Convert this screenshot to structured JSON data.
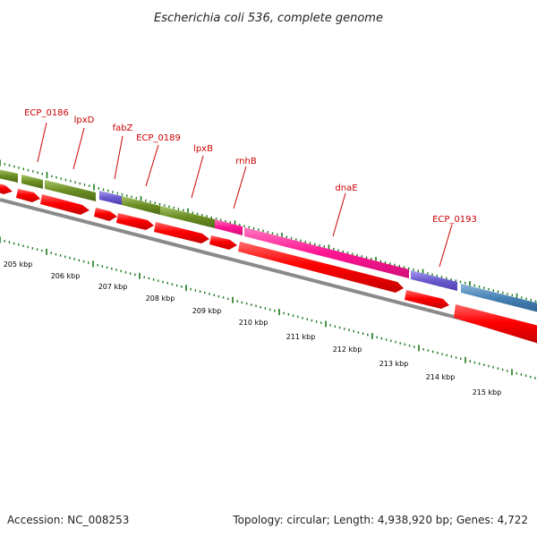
{
  "title": "Escherichia coli 536, complete genome",
  "footer": {
    "accession": "Accession: NC_008253",
    "summary": "Topology: circular; Length: 4,938,920 bp; Genes: 4,722"
  },
  "colors": {
    "tick": "#1a7a1a",
    "label": "#cc0000",
    "backbone": "#888888",
    "feature_olive": "#6b8e23",
    "feature_purple": "#6a5acd",
    "feature_magenta": "#ff1493",
    "feature_steelblue": "#4682b4",
    "gene_red": "#ff0000"
  },
  "gene_labels": [
    {
      "name": "ECP_0186"
    },
    {
      "name": "lpxD"
    },
    {
      "name": "fabZ"
    },
    {
      "name": "ECP_0189"
    },
    {
      "name": "lpxB"
    },
    {
      "name": "rnhB"
    },
    {
      "name": "dnaE"
    },
    {
      "name": "ECP_0193"
    }
  ],
  "scale_labels": [
    "205 kbp",
    "206 kbp",
    "207 kbp",
    "208 kbp",
    "209 kbp",
    "210 kbp",
    "211 kbp",
    "212 kbp",
    "213 kbp",
    "214 kbp",
    "215 kbp"
  ]
}
